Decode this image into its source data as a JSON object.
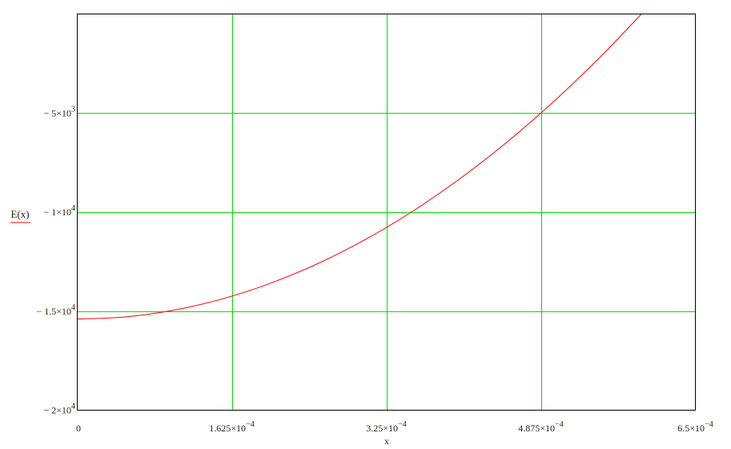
{
  "chart_data": {
    "type": "line",
    "xlabel": "x",
    "ylabel": "E(x)",
    "xlim": [
      0,
      0.00065
    ],
    "ylim": [
      -20000,
      0
    ],
    "grid": true,
    "x_ticks": [
      {
        "value": 0,
        "mantissa": "0",
        "exp": ""
      },
      {
        "value": 0.0001625,
        "mantissa": "1.625×10",
        "exp": "−4"
      },
      {
        "value": 0.000325,
        "mantissa": "3.25×10",
        "exp": "−4"
      },
      {
        "value": 0.0004875,
        "mantissa": "4.875×10",
        "exp": "−4"
      },
      {
        "value": 0.00065,
        "mantissa": "6.5×10",
        "exp": "−4"
      }
    ],
    "y_ticks": [
      {
        "value": -5000,
        "mantissa": "− 5×10",
        "exp": "3"
      },
      {
        "value": -10000,
        "mantissa": "− 1×10",
        "exp": "4"
      },
      {
        "value": -15000,
        "mantissa": "− 1.5×10",
        "exp": "4"
      },
      {
        "value": -20000,
        "mantissa": "− 2×10",
        "exp": "4"
      }
    ],
    "series": [
      {
        "color": "#ff0000",
        "x": [
          0,
          5e-05,
          0.0001,
          0.00015,
          0.0002,
          0.00025,
          0.0003,
          0.00035,
          0.0004,
          0.00045,
          0.0005,
          0.00055,
          0.000593
        ],
        "y": [
          -15400,
          -15291,
          -14963,
          -14416,
          -13650,
          -12666,
          -11463,
          -10041,
          -8400,
          -6541,
          -4463,
          -2166,
          -15
        ]
      }
    ],
    "colors": {
      "grid": "#00e000",
      "curve": "#ff0000",
      "frame": "#000000"
    }
  }
}
